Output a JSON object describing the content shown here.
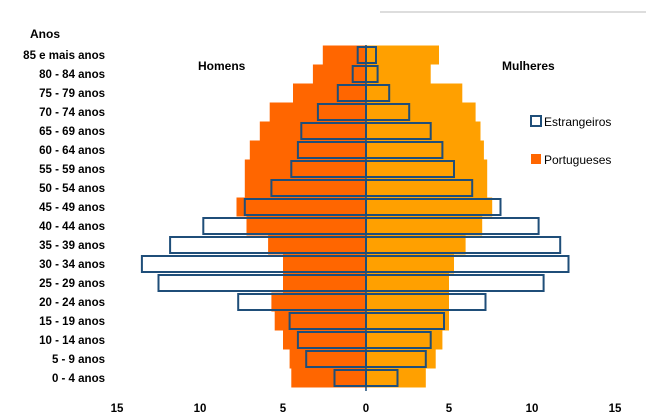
{
  "chart_data": {
    "type": "bar",
    "y_axis_title": "Anos",
    "left_label": "Homens",
    "right_label": "Mulheres",
    "categories": [
      "85 e mais anos",
      "80 - 84 anos",
      "75 - 79 anos",
      "70 - 74 anos",
      "65 - 69 anos",
      "60 - 64 anos",
      "55 - 59 anos",
      "50 - 54 anos",
      "45 - 49 anos",
      "40 - 44 anos",
      "35 - 39 anos",
      "30 - 34 anos",
      "25 - 29 anos",
      "20 - 24 anos",
      "15 - 19 anos",
      "10 - 14 anos",
      "5 - 9 anos",
      "0 - 4 anos"
    ],
    "x_ticks": [
      "15",
      "10",
      "5",
      "0",
      "5",
      "10",
      "15"
    ],
    "xlim": [
      -15,
      15
    ],
    "legend": [
      {
        "name": "Estrangeiros",
        "color": "#1f4e79"
      },
      {
        "name": "Portugueses",
        "color": "#ff6600"
      }
    ],
    "series": [
      {
        "name": "Portugueses",
        "side": "Homens",
        "color": "#ff6600",
        "values": [
          2.6,
          3.2,
          4.4,
          5.8,
          6.4,
          7.0,
          7.3,
          7.3,
          7.8,
          7.2,
          5.9,
          5.0,
          5.0,
          5.7,
          5.5,
          5.0,
          4.6,
          4.5
        ]
      },
      {
        "name": "Portugueses",
        "side": "Mulheres",
        "color": "#ffa000",
        "values": [
          4.4,
          3.9,
          5.8,
          6.6,
          6.9,
          7.1,
          7.3,
          7.3,
          7.6,
          7.0,
          6.0,
          5.3,
          5.0,
          5.0,
          5.0,
          4.6,
          4.2,
          3.6
        ]
      },
      {
        "name": "Estrangeiros",
        "side": "Homens",
        "color": "#1f4e79",
        "values": [
          0.5,
          0.8,
          1.7,
          2.9,
          3.9,
          4.1,
          4.5,
          5.7,
          7.3,
          9.8,
          11.8,
          13.5,
          12.5,
          7.7,
          4.6,
          4.1,
          3.6,
          1.9
        ]
      },
      {
        "name": "Estrangeiros",
        "side": "Mulheres",
        "color": "#1f4e79",
        "values": [
          0.6,
          0.7,
          1.4,
          2.6,
          3.9,
          4.6,
          5.3,
          6.4,
          8.1,
          10.4,
          11.7,
          12.2,
          10.7,
          7.2,
          4.7,
          3.9,
          3.6,
          1.9
        ]
      }
    ]
  }
}
